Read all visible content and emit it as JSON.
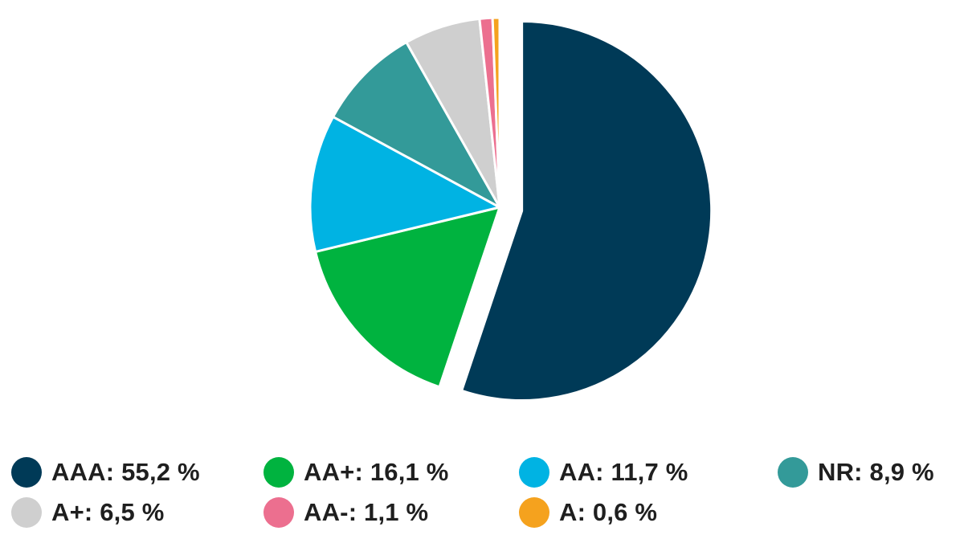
{
  "chart_data": {
    "type": "pie",
    "slices": [
      {
        "label": "AAA",
        "value": 55.2,
        "color": "#003a57",
        "legend_text": "AAA: 55,2 %"
      },
      {
        "label": "AA+",
        "value": 16.1,
        "color": "#00b33f",
        "legend_text": "AA+: 16,1 %"
      },
      {
        "label": "AA",
        "value": 11.7,
        "color": "#00b3e3",
        "legend_text": "AA: 11,7 %"
      },
      {
        "label": "NR",
        "value": 8.9,
        "color": "#339a99",
        "legend_text": "NR: 8,9 %"
      },
      {
        "label": "A+",
        "value": 6.5,
        "color": "#cfcfcf",
        "legend_text": "A+: 6,5 %"
      },
      {
        "label": "AA-",
        "value": 1.1,
        "color": "#ec6f8f",
        "legend_text": "AA-: 1,1 %"
      },
      {
        "label": "A",
        "value": 0.6,
        "color": "#f5a21e",
        "legend_text": "A: 0,6 %"
      }
    ],
    "legend_placement": "bottom",
    "exploded_slice": "AAA"
  }
}
